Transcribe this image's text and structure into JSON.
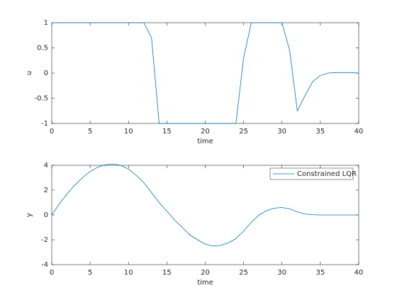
{
  "chart_data": [
    {
      "type": "line",
      "xlabel": "time",
      "ylabel": "u",
      "x": [
        0,
        1,
        2,
        3,
        4,
        5,
        6,
        7,
        8,
        9,
        10,
        11,
        12,
        13,
        14,
        15,
        16,
        17,
        18,
        19,
        20,
        21,
        22,
        23,
        24,
        25,
        26,
        27,
        28,
        29,
        30,
        31,
        32,
        33,
        34,
        35,
        36,
        37,
        38,
        39,
        40
      ],
      "series": [
        {
          "color": "#0072bd",
          "values": [
            1,
            1,
            1,
            1,
            1,
            1,
            1,
            1,
            1,
            1,
            1,
            1,
            1,
            0.7,
            -1,
            -1,
            -1,
            -1,
            -1,
            -1,
            -1,
            -1,
            -1,
            -1,
            -1,
            0.3,
            1,
            1,
            1,
            1,
            1,
            0.45,
            -0.75,
            -0.45,
            -0.17,
            -0.05,
            0,
            0.01,
            0.01,
            0.01,
            0
          ]
        }
      ],
      "xlim": [
        0,
        40
      ],
      "ylim": [
        -1,
        1
      ],
      "xticks": [
        0,
        5,
        10,
        15,
        20,
        25,
        30,
        35,
        40
      ],
      "yticks": [
        -1,
        -0.5,
        0,
        0.5,
        1
      ]
    },
    {
      "type": "line",
      "xlabel": "time",
      "ylabel": "y",
      "legend": "northeast",
      "x": [
        0,
        1,
        2,
        3,
        4,
        5,
        6,
        7,
        8,
        9,
        10,
        11,
        12,
        13,
        14,
        15,
        16,
        17,
        18,
        19,
        20,
        21,
        22,
        23,
        24,
        25,
        26,
        27,
        28,
        29,
        30,
        31,
        32,
        33,
        34,
        35,
        36,
        37,
        38,
        39,
        40
      ],
      "series": [
        {
          "name": "Constrained LQR",
          "color": "#0072bd",
          "values": [
            0,
            0.9,
            1.7,
            2.4,
            3.0,
            3.5,
            3.85,
            4.05,
            4.1,
            4.0,
            3.7,
            3.2,
            2.6,
            1.8,
            1.0,
            0.3,
            -0.4,
            -1.0,
            -1.6,
            -2.0,
            -2.35,
            -2.5,
            -2.45,
            -2.25,
            -1.9,
            -1.3,
            -0.6,
            0,
            0.35,
            0.55,
            0.6,
            0.5,
            0.25,
            0.08,
            0.02,
            0,
            0,
            0,
            0,
            0,
            0
          ]
        }
      ],
      "xlim": [
        0,
        40
      ],
      "ylim": [
        -4,
        4
      ],
      "xticks": [
        0,
        5,
        10,
        15,
        20,
        25,
        30,
        35,
        40
      ],
      "yticks": [
        -4,
        -2,
        0,
        2,
        4
      ]
    }
  ]
}
